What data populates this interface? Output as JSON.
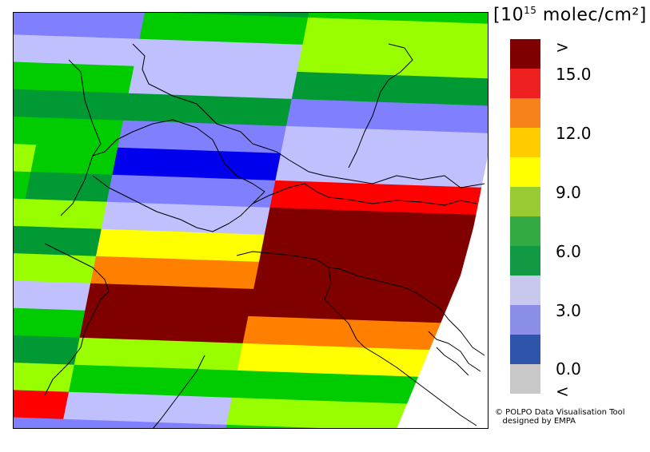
{
  "legend": {
    "unit_main": "[10",
    "unit_exp": "15",
    "unit_rest": " molec/cm²]",
    "above_label": ">",
    "below_label": "<",
    "ticks": [
      "15.0",
      "12.0",
      "9.0",
      "6.0",
      "3.0",
      "0.0"
    ],
    "colors": [
      "#7f0000",
      "#ee2020",
      "#f7821a",
      "#ffcc00",
      "#ffff00",
      "#99cc33",
      "#33aa44",
      "#119944",
      "#c8c8ee",
      "#8a8ee6",
      "#2f55aa",
      "#c8c8c8"
    ]
  },
  "credit": {
    "line1": "© POLPO Data Visualisation Tool",
    "line2": "   designed by EMPA"
  },
  "map": {
    "palette": {
      "dark_red": "#800000",
      "red": "#ff0000",
      "orange": "#ff8000",
      "yellow": "#ffff00",
      "lime": "#99ff00",
      "green": "#00cc00",
      "dark_green": "#009933",
      "lavender": "#c0c0ff",
      "periwinkle": "#8080ff",
      "blue": "#0000ee"
    },
    "columns": [
      [
        "blue",
        "periwinkle",
        "lavender",
        "green",
        "dark_green",
        "green",
        "lime",
        "green",
        "lime",
        "dark_green",
        "lime",
        "lavender",
        "green",
        "dark_green",
        "lime",
        "red",
        "periwinkle"
      ],
      [
        "blue",
        "periwinkle",
        "lavender",
        "green",
        "dark_green",
        "green",
        "green",
        "dark_green",
        "lime",
        "dark_green",
        "lime",
        "lavender",
        "green",
        "dark_green",
        "lime",
        "red",
        "periwinkle"
      ],
      [
        "dark_green",
        "green",
        "lavender",
        "lavender",
        "dark_green",
        "periwinkle",
        "blue",
        "periwinkle",
        "lavender",
        "yellow",
        "orange",
        "dark_red",
        "dark_red",
        "lime",
        "green",
        "lavender",
        "periwinkle"
      ],
      [
        "dark_green",
        "green",
        "lavender",
        "lavender",
        "dark_green",
        "periwinkle",
        "blue",
        "periwinkle",
        "lavender",
        "yellow",
        "orange",
        "dark_red",
        "dark_red",
        "lime",
        "green",
        "lavender",
        "periwinkle"
      ],
      [
        "green",
        "lime",
        "lime",
        "dark_green",
        "periwinkle",
        "lavender",
        "lavender",
        "red",
        "dark_red",
        "dark_red",
        "dark_red",
        "dark_red",
        "orange",
        "yellow",
        "green",
        "lime",
        "green"
      ],
      [
        "green",
        "lime",
        "lime",
        "dark_green",
        "periwinkle",
        "lavender",
        "lavender",
        "red",
        "dark_red",
        "dark_red",
        "dark_red",
        "dark_red",
        "orange",
        "yellow",
        "green",
        "lime",
        "green"
      ]
    ]
  }
}
